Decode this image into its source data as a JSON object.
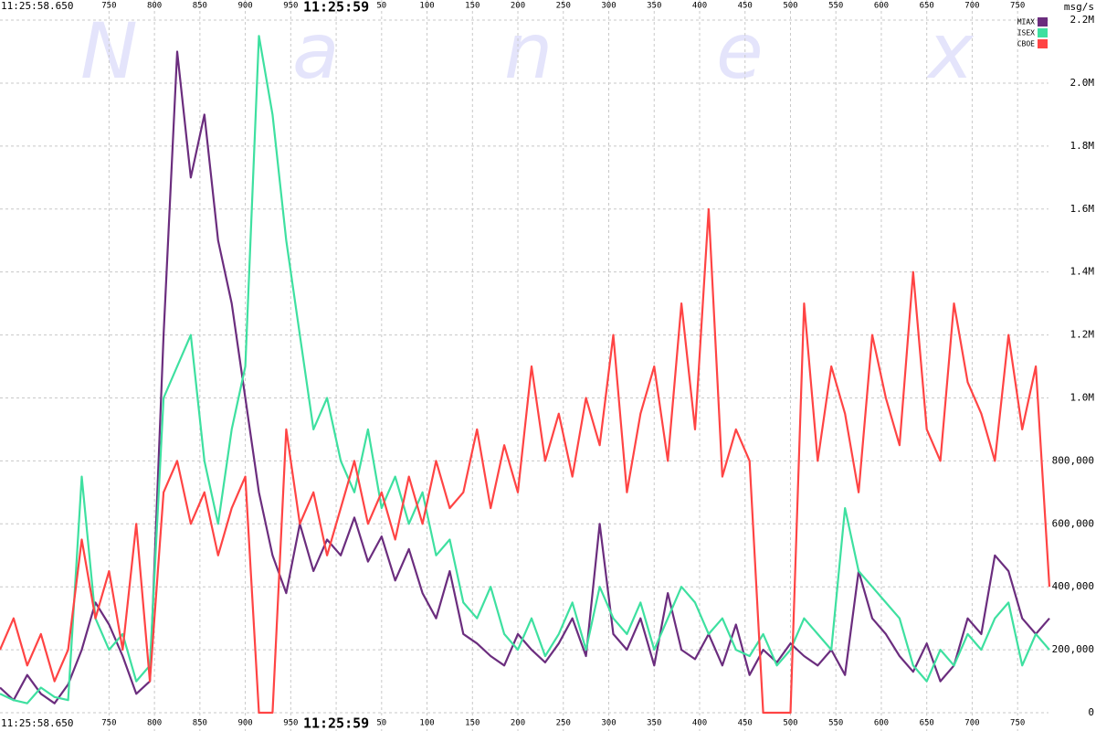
{
  "chart_data": {
    "type": "line",
    "start_label": "11:25:58.650",
    "unit_label": "msg/s",
    "watermark": [
      "N",
      "a",
      "n",
      "e",
      "x"
    ],
    "x": [
      630,
      645,
      660,
      675,
      690,
      705,
      720,
      735,
      750,
      765,
      780,
      795,
      810,
      825,
      840,
      855,
      870,
      885,
      900,
      915,
      930,
      945,
      960,
      975,
      990,
      1005,
      1020,
      1035,
      1050,
      1065,
      1080,
      1095,
      1110,
      1125,
      1140,
      1155,
      1170,
      1185,
      1200,
      1215,
      1230,
      1245,
      1260,
      1275,
      1290,
      1305,
      1320,
      1335,
      1350,
      1365,
      1380,
      1395,
      1410,
      1425,
      1440,
      1455,
      1470,
      1485,
      1500,
      1515,
      1530,
      1545,
      1560,
      1575,
      1590,
      1605,
      1620,
      1635,
      1650,
      1665,
      1680,
      1695,
      1710,
      1725,
      1740,
      1755,
      1770,
      1785
    ],
    "xlim": [
      630,
      1784
    ],
    "xticks": [
      750,
      800,
      850,
      900,
      950,
      {
        "value": 1000,
        "label": "11:25:59"
      },
      {
        "value": 1050,
        "label": "50"
      },
      {
        "value": 1100,
        "label": "100"
      },
      {
        "value": 1150,
        "label": "150"
      },
      {
        "value": 1200,
        "label": "200"
      },
      {
        "value": 1250,
        "label": "250"
      },
      {
        "value": 1300,
        "label": "300"
      },
      {
        "value": 1350,
        "label": "350"
      },
      {
        "value": 1400,
        "label": "400"
      },
      {
        "value": 1450,
        "label": "450"
      },
      {
        "value": 1500,
        "label": "500"
      },
      {
        "value": 1550,
        "label": "550"
      },
      {
        "value": 1600,
        "label": "600"
      },
      {
        "value": 1650,
        "label": "650"
      },
      {
        "value": 1700,
        "label": "700"
      },
      {
        "value": 1750,
        "label": "750"
      }
    ],
    "ylim": [
      -58000,
      2264000
    ],
    "yticks": [
      0,
      {
        "value": 200000,
        "label": "200,000"
      },
      {
        "value": 400000,
        "label": "400,000"
      },
      {
        "value": 600000,
        "label": "600,000"
      },
      {
        "value": 800000,
        "label": "800,000"
      },
      {
        "value": 1000000,
        "label": "1.0M"
      },
      {
        "value": 1200000,
        "label": "1.2M"
      },
      {
        "value": 1400000,
        "label": "1.4M"
      },
      {
        "value": 1600000,
        "label": "1.6M"
      },
      {
        "value": 1800000,
        "label": "1.8M"
      },
      {
        "value": 2000000,
        "label": "2.0M"
      },
      {
        "value": 2200000,
        "label": "2.2M"
      }
    ],
    "grid": true,
    "legend": "top-right",
    "series": [
      {
        "name": "MIAX",
        "color": "#6b2d7e",
        "values": [
          80000,
          40000,
          120000,
          60000,
          30000,
          90000,
          200000,
          350000,
          280000,
          180000,
          60000,
          100000,
          1200000,
          2100000,
          1700000,
          1900000,
          1500000,
          1300000,
          1000000,
          700000,
          500000,
          380000,
          600000,
          450000,
          550000,
          500000,
          620000,
          480000,
          560000,
          420000,
          520000,
          380000,
          300000,
          450000,
          250000,
          220000,
          180000,
          150000,
          250000,
          200000,
          160000,
          220000,
          300000,
          180000,
          600000,
          250000,
          200000,
          300000,
          150000,
          380000,
          200000,
          170000,
          250000,
          150000,
          280000,
          120000,
          200000,
          160000,
          220000,
          180000,
          150000,
          200000,
          120000,
          450000,
          300000,
          250000,
          180000,
          130000,
          220000,
          100000,
          150000,
          300000,
          250000,
          500000,
          450000,
          300000,
          250000,
          300000
        ]
      },
      {
        "name": "ISEX",
        "color": "#3ee0a0",
        "values": [
          60000,
          40000,
          30000,
          80000,
          50000,
          40000,
          750000,
          300000,
          200000,
          250000,
          100000,
          150000,
          1000000,
          1100000,
          1200000,
          800000,
          600000,
          900000,
          1100000,
          2150000,
          1900000,
          1500000,
          1200000,
          900000,
          1000000,
          800000,
          700000,
          900000,
          650000,
          750000,
          600000,
          700000,
          500000,
          550000,
          350000,
          300000,
          400000,
          250000,
          200000,
          300000,
          180000,
          250000,
          350000,
          200000,
          400000,
          300000,
          250000,
          350000,
          200000,
          300000,
          400000,
          350000,
          250000,
          300000,
          200000,
          180000,
          250000,
          150000,
          200000,
          300000,
          250000,
          200000,
          650000,
          450000,
          400000,
          350000,
          300000,
          150000,
          100000,
          200000,
          150000,
          250000,
          200000,
          300000,
          350000,
          150000,
          250000,
          200000
        ]
      },
      {
        "name": "CBOE",
        "color": "#ff4444",
        "values": [
          200000,
          300000,
          150000,
          250000,
          100000,
          200000,
          550000,
          300000,
          450000,
          200000,
          600000,
          100000,
          700000,
          800000,
          600000,
          700000,
          500000,
          650000,
          750000,
          0,
          0,
          900000,
          600000,
          700000,
          500000,
          650000,
          800000,
          600000,
          700000,
          550000,
          750000,
          600000,
          800000,
          650000,
          700000,
          900000,
          650000,
          850000,
          700000,
          1100000,
          800000,
          950000,
          750000,
          1000000,
          850000,
          1200000,
          700000,
          950000,
          1100000,
          800000,
          1300000,
          900000,
          1600000,
          750000,
          900000,
          800000,
          0,
          0,
          0,
          1300000,
          800000,
          1100000,
          950000,
          700000,
          1200000,
          1000000,
          850000,
          1400000,
          900000,
          800000,
          1300000,
          1050000,
          950000,
          800000,
          1200000,
          900000,
          1100000,
          400000
        ]
      }
    ]
  }
}
